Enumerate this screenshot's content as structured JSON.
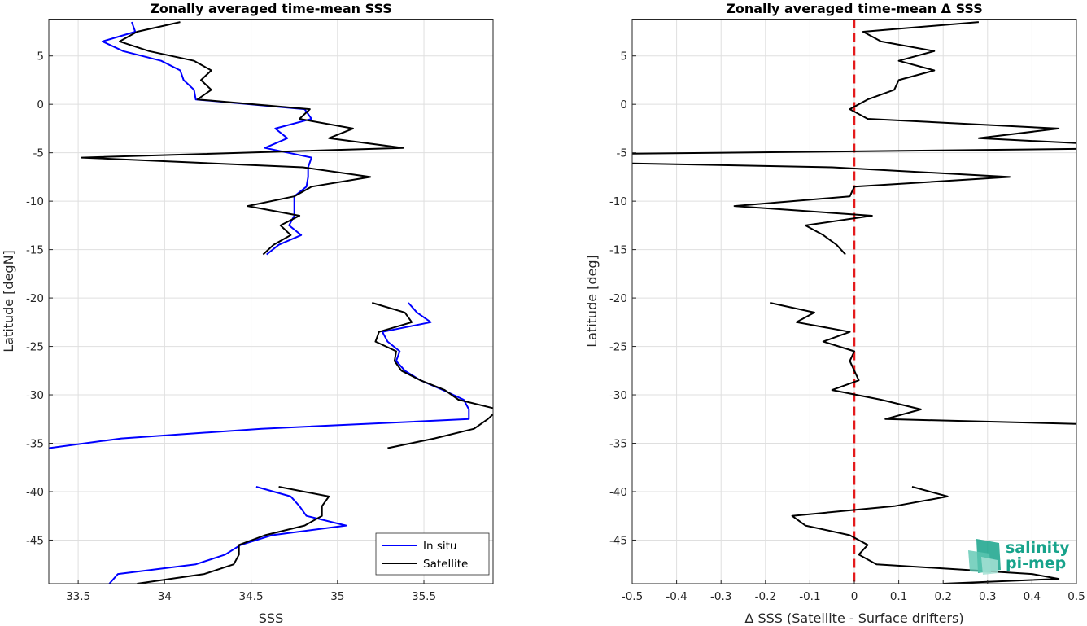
{
  "chart_data": [
    {
      "type": "line",
      "title": "Zonally averaged time-mean SSS",
      "xlabel": "SSS",
      "ylabel": "Latitude [degN]",
      "xlim": [
        33.33,
        35.9
      ],
      "ylim": [
        -49.5,
        8.8
      ],
      "grid": true,
      "xticks": [
        33.5,
        34,
        34.5,
        35,
        35.5
      ],
      "xtick_labels": [
        "33.5",
        "34",
        "34.5",
        "35",
        "35.5"
      ],
      "yticks": [
        5,
        0,
        -5,
        -10,
        -15,
        -20,
        -25,
        -30,
        -35,
        -40,
        -45
      ],
      "ytick_labels": [
        "5",
        "0",
        "-5",
        "-10",
        "-15",
        "-20",
        "-25",
        "-30",
        "-35",
        "-40",
        "-45"
      ],
      "legend_position": "bottom-right",
      "series": [
        {
          "name": "In situ",
          "color": "#0000ff",
          "segments": [
            [
              [
                33.81,
                8.5
              ],
              [
                33.83,
                7.5
              ],
              [
                33.64,
                6.5
              ],
              [
                33.76,
                5.5
              ],
              [
                33.98,
                4.5
              ],
              [
                34.09,
                3.5
              ],
              [
                34.11,
                2.5
              ],
              [
                34.17,
                1.5
              ],
              [
                34.18,
                0.5
              ],
              [
                34.81,
                -0.5
              ],
              [
                34.85,
                -1.5
              ],
              [
                34.64,
                -2.5
              ],
              [
                34.71,
                -3.5
              ],
              [
                34.58,
                -4.5
              ],
              [
                34.85,
                -5.5
              ],
              [
                34.83,
                -6.5
              ],
              [
                34.83,
                -7.5
              ],
              [
                34.82,
                -8.5
              ],
              [
                34.75,
                -9.5
              ],
              [
                34.75,
                -10.5
              ],
              [
                34.75,
                -11.5
              ],
              [
                34.72,
                -12.5
              ],
              [
                34.79,
                -13.5
              ],
              [
                34.66,
                -14.5
              ],
              [
                34.59,
                -15.5
              ]
            ],
            [
              [
                35.41,
                -20.5
              ],
              [
                35.46,
                -21.5
              ],
              [
                35.54,
                -22.5
              ],
              [
                35.26,
                -23.5
              ],
              [
                35.29,
                -24.5
              ],
              [
                35.36,
                -25.5
              ],
              [
                35.34,
                -26.5
              ],
              [
                35.39,
                -27.5
              ],
              [
                35.48,
                -28.5
              ],
              [
                35.61,
                -29.5
              ],
              [
                35.73,
                -30.5
              ],
              [
                35.76,
                -31.5
              ],
              [
                35.76,
                -32.5
              ],
              [
                34.56,
                -33.5
              ],
              [
                33.75,
                -34.5
              ],
              [
                33.33,
                -35.5
              ]
            ],
            [
              [
                34.53,
                -39.5
              ],
              [
                34.73,
                -40.5
              ],
              [
                34.78,
                -41.5
              ],
              [
                34.82,
                -42.5
              ],
              [
                35.05,
                -43.5
              ],
              [
                34.62,
                -44.5
              ],
              [
                34.44,
                -45.5
              ],
              [
                34.35,
                -46.5
              ],
              [
                34.18,
                -47.5
              ],
              [
                33.73,
                -48.5
              ],
              [
                33.68,
                -49.5
              ]
            ]
          ]
        },
        {
          "name": "Satellite",
          "color": "#000000",
          "segments": [
            [
              [
                34.09,
                8.5
              ],
              [
                33.84,
                7.5
              ],
              [
                33.74,
                6.5
              ],
              [
                33.91,
                5.5
              ],
              [
                34.17,
                4.5
              ],
              [
                34.27,
                3.5
              ],
              [
                34.21,
                2.5
              ],
              [
                34.27,
                1.5
              ],
              [
                34.19,
                0.5
              ],
              [
                34.84,
                -0.5
              ],
              [
                34.78,
                -1.5
              ],
              [
                35.09,
                -2.5
              ],
              [
                34.95,
                -3.5
              ],
              [
                35.38,
                -4.5
              ],
              [
                33.52,
                -5.5
              ],
              [
                34.8,
                -6.5
              ],
              [
                35.19,
                -7.5
              ],
              [
                34.85,
                -8.5
              ],
              [
                34.75,
                -9.5
              ],
              [
                34.48,
                -10.5
              ],
              [
                34.78,
                -11.5
              ],
              [
                34.67,
                -12.5
              ],
              [
                34.73,
                -13.5
              ],
              [
                34.63,
                -14.5
              ],
              [
                34.57,
                -15.5
              ]
            ],
            [
              [
                35.2,
                -20.5
              ],
              [
                35.39,
                -21.5
              ],
              [
                35.43,
                -22.5
              ],
              [
                35.24,
                -23.5
              ],
              [
                35.22,
                -24.5
              ],
              [
                35.34,
                -25.5
              ],
              [
                35.33,
                -26.5
              ],
              [
                35.37,
                -27.5
              ],
              [
                35.48,
                -28.5
              ],
              [
                35.62,
                -29.5
              ],
              [
                35.7,
                -30.5
              ],
              [
                35.93,
                -31.5
              ],
              [
                35.87,
                -32.5
              ],
              [
                35.79,
                -33.5
              ],
              [
                35.56,
                -34.5
              ],
              [
                35.29,
                -35.5
              ]
            ],
            [
              [
                34.66,
                -39.5
              ],
              [
                34.95,
                -40.5
              ],
              [
                34.91,
                -41.5
              ],
              [
                34.91,
                -42.5
              ],
              [
                34.81,
                -43.5
              ],
              [
                34.58,
                -44.5
              ],
              [
                34.43,
                -45.5
              ],
              [
                34.43,
                -46.5
              ],
              [
                34.4,
                -47.5
              ],
              [
                34.23,
                -48.5
              ],
              [
                33.84,
                -49.5
              ]
            ]
          ]
        }
      ]
    },
    {
      "type": "line",
      "title": "Zonally averaged time-mean Δ SSS",
      "xlabel": "Δ SSS (Satellite - Surface drifters)",
      "ylabel": "Latitude [deg]",
      "xlim": [
        -0.5,
        0.5
      ],
      "ylim": [
        -49.5,
        8.8
      ],
      "grid": true,
      "xticks": [
        -0.5,
        -0.4,
        -0.3,
        -0.2,
        -0.1,
        0,
        0.1,
        0.2,
        0.3,
        0.4,
        0.5
      ],
      "xtick_labels": [
        "-0.5",
        "-0.4",
        "-0.3",
        "-0.2",
        "-0.1",
        "0",
        "0.1",
        "0.2",
        "0.3",
        "0.4",
        "0.5"
      ],
      "yticks": [
        5,
        0,
        -5,
        -10,
        -15,
        -20,
        -25,
        -30,
        -35,
        -40,
        -45
      ],
      "ytick_labels": [
        "5",
        "0",
        "-5",
        "-10",
        "-15",
        "-20",
        "-25",
        "-30",
        "-35",
        "-40",
        "-45"
      ],
      "reference_line": {
        "x": 0,
        "color": "#e41a1c",
        "style": "dashed"
      },
      "series": [
        {
          "color": "#000000",
          "segments": [
            [
              [
                0.28,
                8.5
              ],
              [
                0.02,
                7.5
              ],
              [
                0.06,
                6.5
              ],
              [
                0.18,
                5.5
              ],
              [
                0.1,
                4.5
              ],
              [
                0.18,
                3.5
              ],
              [
                0.1,
                2.5
              ],
              [
                0.09,
                1.5
              ],
              [
                0.03,
                0.5
              ],
              [
                -0.01,
                -0.5
              ],
              [
                0.03,
                -1.5
              ],
              [
                0.46,
                -2.5
              ],
              [
                0.28,
                -3.5
              ],
              [
                0.5,
                -4.0
              ]
            ],
            [
              [
                0.5,
                -4.6
              ],
              [
                -0.5,
                -5.1
              ]
            ],
            [
              [
                -0.5,
                -6.1
              ],
              [
                -0.05,
                -6.5
              ],
              [
                0.35,
                -7.5
              ],
              [
                0.0,
                -8.5
              ],
              [
                -0.01,
                -9.5
              ],
              [
                -0.27,
                -10.5
              ],
              [
                0.04,
                -11.5
              ],
              [
                -0.11,
                -12.5
              ],
              [
                -0.07,
                -13.5
              ],
              [
                -0.04,
                -14.5
              ],
              [
                -0.02,
                -15.5
              ]
            ],
            [
              [
                -0.19,
                -20.5
              ],
              [
                -0.09,
                -21.5
              ],
              [
                -0.13,
                -22.5
              ],
              [
                -0.01,
                -23.5
              ],
              [
                -0.07,
                -24.5
              ],
              [
                0.0,
                -25.5
              ],
              [
                -0.01,
                -26.5
              ],
              [
                0.0,
                -27.5
              ],
              [
                0.01,
                -28.5
              ],
              [
                -0.05,
                -29.5
              ],
              [
                0.06,
                -30.5
              ],
              [
                0.15,
                -31.5
              ],
              [
                0.07,
                -32.5
              ],
              [
                0.5,
                -33.0
              ]
            ],
            [
              [
                0.13,
                -39.5
              ],
              [
                0.21,
                -40.5
              ],
              [
                0.09,
                -41.5
              ],
              [
                -0.14,
                -42.5
              ],
              [
                -0.11,
                -43.5
              ],
              [
                -0.01,
                -44.5
              ],
              [
                0.03,
                -45.5
              ],
              [
                0.01,
                -46.5
              ],
              [
                0.05,
                -47.5
              ],
              [
                0.4,
                -48.5
              ],
              [
                0.46,
                -49.0
              ],
              [
                0.2,
                -49.5
              ]
            ]
          ]
        }
      ]
    }
  ],
  "legend": {
    "entries": [
      "In situ",
      "Satellite"
    ]
  },
  "logo": {
    "line1": "salinity",
    "line2": "pi-mep"
  }
}
